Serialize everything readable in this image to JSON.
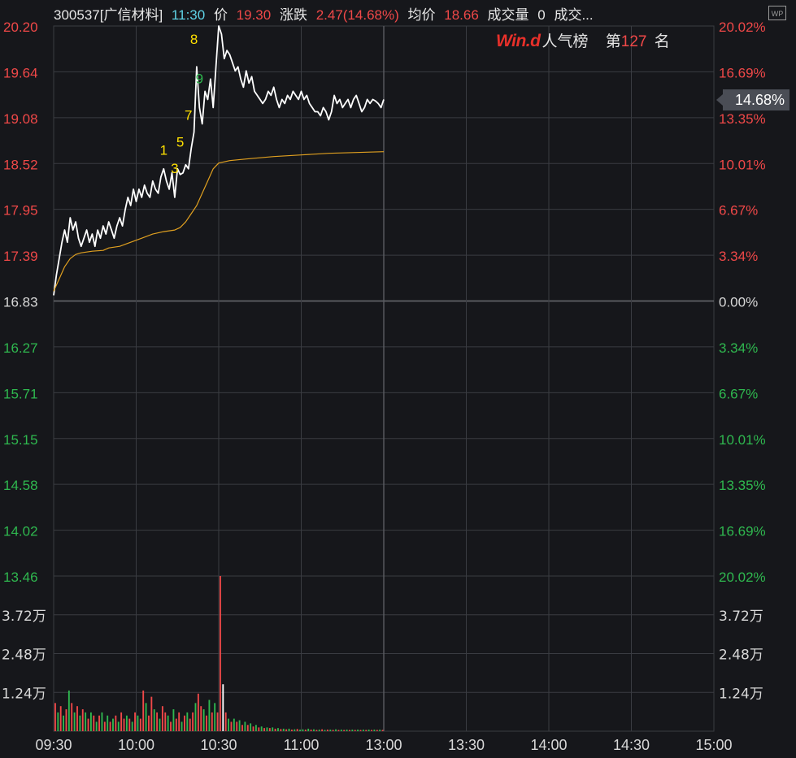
{
  "header": {
    "code_name": "300537[广信材料]",
    "time": "11:30",
    "price_label": "价",
    "price": "19.30",
    "change_label": "涨跌",
    "change": "2.47(14.68%)",
    "avg_label": "均价",
    "avg": "18.66",
    "volume_label": "成交量",
    "volume": "0",
    "amount_label": "成交..."
  },
  "rank": {
    "brand": "Win.d",
    "label": "人气榜",
    "prefix": "第",
    "value": "127",
    "suffix": "名"
  },
  "badge": "WP",
  "current_tag": "14.68%",
  "colors": {
    "background": "#16171b",
    "grid": "#3a3c42",
    "up": "#f04848",
    "down": "#2fb84f",
    "price_line": "#ffffff",
    "avg_line": "#e0a020",
    "marker": "#ffe000"
  },
  "chart_data": {
    "type": "line",
    "x_ticks": [
      "09:30",
      "10:00",
      "10:30",
      "11:00",
      "13:00",
      "13:30",
      "14:00",
      "14:30",
      "15:00"
    ],
    "price_axis_left": [
      "20.20",
      "19.64",
      "19.08",
      "18.52",
      "17.95",
      "17.39",
      "16.83",
      "16.27",
      "15.71",
      "15.15",
      "14.58",
      "14.02",
      "13.46"
    ],
    "pct_axis_right": [
      "20.02%",
      "16.69%",
      "13.35%",
      "10.01%",
      "6.67%",
      "3.34%",
      "0.00%",
      "3.34%",
      "6.67%",
      "10.01%",
      "13.35%",
      "16.69%",
      "20.02%"
    ],
    "volume_axis": [
      "3.72万",
      "2.48万",
      "1.24万"
    ],
    "ylim": [
      13.46,
      20.2
    ],
    "prev_close": 16.83,
    "total_minutes": 240,
    "series": [
      {
        "key": "price",
        "points": [
          [
            0,
            16.9
          ],
          [
            1,
            17.15
          ],
          [
            2,
            17.35
          ],
          [
            3,
            17.55
          ],
          [
            4,
            17.7
          ],
          [
            5,
            17.55
          ],
          [
            6,
            17.85
          ],
          [
            7,
            17.7
          ],
          [
            8,
            17.8
          ],
          [
            9,
            17.6
          ],
          [
            10,
            17.5
          ],
          [
            11,
            17.6
          ],
          [
            12,
            17.7
          ],
          [
            13,
            17.55
          ],
          [
            14,
            17.65
          ],
          [
            15,
            17.5
          ],
          [
            16,
            17.7
          ],
          [
            17,
            17.6
          ],
          [
            18,
            17.75
          ],
          [
            19,
            17.65
          ],
          [
            20,
            17.8
          ],
          [
            21,
            17.7
          ],
          [
            22,
            17.6
          ],
          [
            23,
            17.75
          ],
          [
            24,
            17.85
          ],
          [
            25,
            17.75
          ],
          [
            26,
            17.95
          ],
          [
            27,
            18.1
          ],
          [
            28,
            18.0
          ],
          [
            29,
            18.2
          ],
          [
            30,
            18.05
          ],
          [
            31,
            18.2
          ],
          [
            32,
            18.1
          ],
          [
            33,
            18.25
          ],
          [
            34,
            18.15
          ],
          [
            35,
            18.1
          ],
          [
            36,
            18.3
          ],
          [
            37,
            18.2
          ],
          [
            38,
            18.15
          ],
          [
            39,
            18.35
          ],
          [
            40,
            18.45
          ],
          [
            41,
            18.3
          ],
          [
            42,
            18.2
          ],
          [
            43,
            18.4
          ],
          [
            44,
            18.1
          ],
          [
            45,
            18.45
          ],
          [
            46,
            18.38
          ],
          [
            47,
            18.4
          ],
          [
            48,
            18.5
          ],
          [
            49,
            18.45
          ],
          [
            50,
            18.7
          ],
          [
            51,
            18.9
          ],
          [
            52,
            19.7
          ],
          [
            53,
            19.2
          ],
          [
            54,
            19.0
          ],
          [
            55,
            19.4
          ],
          [
            56,
            19.3
          ],
          [
            57,
            19.55
          ],
          [
            58,
            19.2
          ],
          [
            59,
            19.7
          ],
          [
            60,
            20.2
          ],
          [
            61,
            20.1
          ],
          [
            62,
            19.8
          ],
          [
            63,
            19.9
          ],
          [
            64,
            19.85
          ],
          [
            65,
            19.75
          ],
          [
            66,
            19.65
          ],
          [
            67,
            19.7
          ],
          [
            68,
            19.55
          ],
          [
            69,
            19.45
          ],
          [
            70,
            19.65
          ],
          [
            71,
            19.5
          ],
          [
            72,
            19.58
          ],
          [
            73,
            19.4
          ],
          [
            74,
            19.35
          ],
          [
            75,
            19.3
          ],
          [
            76,
            19.25
          ],
          [
            77,
            19.3
          ],
          [
            78,
            19.4
          ],
          [
            79,
            19.35
          ],
          [
            80,
            19.45
          ],
          [
            81,
            19.3
          ],
          [
            82,
            19.2
          ],
          [
            83,
            19.3
          ],
          [
            84,
            19.25
          ],
          [
            85,
            19.35
          ],
          [
            86,
            19.3
          ],
          [
            87,
            19.4
          ],
          [
            88,
            19.35
          ],
          [
            89,
            19.3
          ],
          [
            90,
            19.4
          ],
          [
            91,
            19.3
          ],
          [
            92,
            19.35
          ],
          [
            93,
            19.25
          ],
          [
            94,
            19.2
          ],
          [
            95,
            19.15
          ],
          [
            96,
            19.15
          ],
          [
            97,
            19.1
          ],
          [
            98,
            19.2
          ],
          [
            99,
            19.15
          ],
          [
            100,
            19.05
          ],
          [
            101,
            19.15
          ],
          [
            102,
            19.35
          ],
          [
            103,
            19.25
          ],
          [
            104,
            19.3
          ],
          [
            105,
            19.2
          ],
          [
            106,
            19.25
          ],
          [
            107,
            19.3
          ],
          [
            108,
            19.2
          ],
          [
            109,
            19.3
          ],
          [
            110,
            19.35
          ],
          [
            111,
            19.25
          ],
          [
            112,
            19.15
          ],
          [
            113,
            19.2
          ],
          [
            114,
            19.3
          ],
          [
            115,
            19.25
          ],
          [
            116,
            19.3
          ],
          [
            117,
            19.28
          ],
          [
            118,
            19.25
          ],
          [
            119,
            19.2
          ],
          [
            120,
            19.3
          ]
        ]
      },
      {
        "key": "avg",
        "points": [
          [
            0,
            16.95
          ],
          [
            2,
            17.1
          ],
          [
            4,
            17.25
          ],
          [
            6,
            17.35
          ],
          [
            8,
            17.4
          ],
          [
            10,
            17.42
          ],
          [
            14,
            17.44
          ],
          [
            18,
            17.45
          ],
          [
            20,
            17.48
          ],
          [
            24,
            17.5
          ],
          [
            28,
            17.55
          ],
          [
            32,
            17.6
          ],
          [
            36,
            17.65
          ],
          [
            40,
            17.68
          ],
          [
            44,
            17.7
          ],
          [
            46,
            17.73
          ],
          [
            48,
            17.8
          ],
          [
            50,
            17.9
          ],
          [
            52,
            18.0
          ],
          [
            54,
            18.15
          ],
          [
            56,
            18.3
          ],
          [
            58,
            18.45
          ],
          [
            60,
            18.52
          ],
          [
            64,
            18.55
          ],
          [
            70,
            18.57
          ],
          [
            80,
            18.6
          ],
          [
            90,
            18.62
          ],
          [
            100,
            18.64
          ],
          [
            110,
            18.65
          ],
          [
            120,
            18.66
          ]
        ]
      }
    ],
    "markers": [
      {
        "label": "3",
        "minute": 44,
        "price": 18.4,
        "color": "yellow"
      },
      {
        "label": "1",
        "minute": 40,
        "price": 18.62,
        "color": "yellow"
      },
      {
        "label": "5",
        "minute": 46,
        "price": 18.72,
        "color": "yellow"
      },
      {
        "label": "7",
        "minute": 49,
        "price": 19.05,
        "color": "yellow"
      },
      {
        "label": "9",
        "minute": 53,
        "price": 19.5,
        "color": "green"
      },
      {
        "label": "8",
        "minute": 51,
        "price": 19.98,
        "color": "yellow"
      }
    ],
    "volume_max": 4.96,
    "volume": [
      [
        0,
        0.9,
        "r"
      ],
      [
        1,
        0.6,
        "g"
      ],
      [
        2,
        0.8,
        "r"
      ],
      [
        3,
        0.5,
        "g"
      ],
      [
        4,
        0.7,
        "r"
      ],
      [
        5,
        1.3,
        "g"
      ],
      [
        6,
        0.9,
        "r"
      ],
      [
        7,
        0.6,
        "g"
      ],
      [
        8,
        0.8,
        "r"
      ],
      [
        9,
        0.5,
        "g"
      ],
      [
        10,
        0.7,
        "r"
      ],
      [
        11,
        0.6,
        "g"
      ],
      [
        12,
        0.4,
        "r"
      ],
      [
        13,
        0.6,
        "g"
      ],
      [
        14,
        0.5,
        "r"
      ],
      [
        15,
        0.3,
        "g"
      ],
      [
        16,
        0.5,
        "r"
      ],
      [
        17,
        0.6,
        "g"
      ],
      [
        18,
        0.3,
        "r"
      ],
      [
        19,
        0.5,
        "g"
      ],
      [
        20,
        0.3,
        "r"
      ],
      [
        21,
        0.4,
        "g"
      ],
      [
        22,
        0.5,
        "r"
      ],
      [
        23,
        0.3,
        "g"
      ],
      [
        24,
        0.6,
        "r"
      ],
      [
        25,
        0.4,
        "r"
      ],
      [
        26,
        0.5,
        "g"
      ],
      [
        27,
        0.4,
        "r"
      ],
      [
        28,
        0.3,
        "g"
      ],
      [
        29,
        0.6,
        "r"
      ],
      [
        30,
        0.5,
        "g"
      ],
      [
        31,
        0.4,
        "r"
      ],
      [
        32,
        1.3,
        "r"
      ],
      [
        33,
        0.9,
        "g"
      ],
      [
        34,
        0.5,
        "r"
      ],
      [
        35,
        1.1,
        "r"
      ],
      [
        36,
        0.7,
        "g"
      ],
      [
        37,
        0.6,
        "r"
      ],
      [
        38,
        0.4,
        "g"
      ],
      [
        39,
        0.8,
        "r"
      ],
      [
        40,
        0.6,
        "r"
      ],
      [
        41,
        0.5,
        "g"
      ],
      [
        42,
        0.3,
        "r"
      ],
      [
        43,
        0.7,
        "g"
      ],
      [
        44,
        0.4,
        "r"
      ],
      [
        45,
        0.6,
        "r"
      ],
      [
        46,
        0.3,
        "g"
      ],
      [
        47,
        0.5,
        "r"
      ],
      [
        48,
        0.6,
        "g"
      ],
      [
        49,
        0.4,
        "r"
      ],
      [
        50,
        0.6,
        "r"
      ],
      [
        51,
        0.9,
        "g"
      ],
      [
        52,
        1.2,
        "r"
      ],
      [
        53,
        0.8,
        "r"
      ],
      [
        54,
        0.7,
        "g"
      ],
      [
        55,
        0.5,
        "r"
      ],
      [
        56,
        1.0,
        "g"
      ],
      [
        57,
        0.6,
        "r"
      ],
      [
        58,
        0.9,
        "g"
      ],
      [
        59,
        0.6,
        "r"
      ],
      [
        60,
        4.96,
        "r"
      ],
      [
        61,
        1.5,
        "w"
      ],
      [
        62,
        0.6,
        "r"
      ],
      [
        63,
        0.4,
        "g"
      ],
      [
        64,
        0.3,
        "r"
      ],
      [
        65,
        0.4,
        "g"
      ],
      [
        66,
        0.3,
        "r"
      ],
      [
        67,
        0.35,
        "g"
      ],
      [
        68,
        0.2,
        "r"
      ],
      [
        69,
        0.3,
        "g"
      ],
      [
        70,
        0.2,
        "r"
      ],
      [
        71,
        0.25,
        "g"
      ],
      [
        72,
        0.15,
        "r"
      ],
      [
        73,
        0.2,
        "g"
      ],
      [
        74,
        0.12,
        "r"
      ],
      [
        75,
        0.15,
        "g"
      ],
      [
        76,
        0.1,
        "r"
      ],
      [
        77,
        0.12,
        "g"
      ],
      [
        78,
        0.1,
        "r"
      ],
      [
        79,
        0.12,
        "g"
      ],
      [
        80,
        0.08,
        "r"
      ],
      [
        81,
        0.1,
        "g"
      ],
      [
        82,
        0.07,
        "r"
      ],
      [
        83,
        0.08,
        "g"
      ],
      [
        84,
        0.06,
        "r"
      ],
      [
        85,
        0.08,
        "g"
      ],
      [
        86,
        0.05,
        "r"
      ],
      [
        87,
        0.06,
        "g"
      ],
      [
        88,
        0.07,
        "r"
      ],
      [
        89,
        0.05,
        "g"
      ],
      [
        90,
        0.06,
        "g"
      ],
      [
        91,
        0.05,
        "r"
      ],
      [
        92,
        0.08,
        "g"
      ],
      [
        93,
        0.05,
        "r"
      ],
      [
        94,
        0.06,
        "g"
      ],
      [
        95,
        0.04,
        "r"
      ],
      [
        96,
        0.05,
        "g"
      ],
      [
        97,
        0.06,
        "r"
      ],
      [
        98,
        0.04,
        "g"
      ],
      [
        99,
        0.05,
        "r"
      ],
      [
        100,
        0.05,
        "g"
      ],
      [
        101,
        0.04,
        "r"
      ],
      [
        102,
        0.06,
        "g"
      ],
      [
        103,
        0.04,
        "r"
      ],
      [
        104,
        0.05,
        "g"
      ],
      [
        105,
        0.04,
        "r"
      ],
      [
        106,
        0.05,
        "g"
      ],
      [
        107,
        0.04,
        "r"
      ],
      [
        108,
        0.05,
        "g"
      ],
      [
        109,
        0.04,
        "r"
      ],
      [
        110,
        0.05,
        "g"
      ],
      [
        111,
        0.04,
        "r"
      ],
      [
        112,
        0.05,
        "g"
      ],
      [
        113,
        0.04,
        "r"
      ],
      [
        114,
        0.05,
        "g"
      ],
      [
        115,
        0.04,
        "r"
      ],
      [
        116,
        0.05,
        "g"
      ],
      [
        117,
        0.04,
        "r"
      ],
      [
        118,
        0.05,
        "g"
      ],
      [
        119,
        0.04,
        "r"
      ]
    ]
  }
}
